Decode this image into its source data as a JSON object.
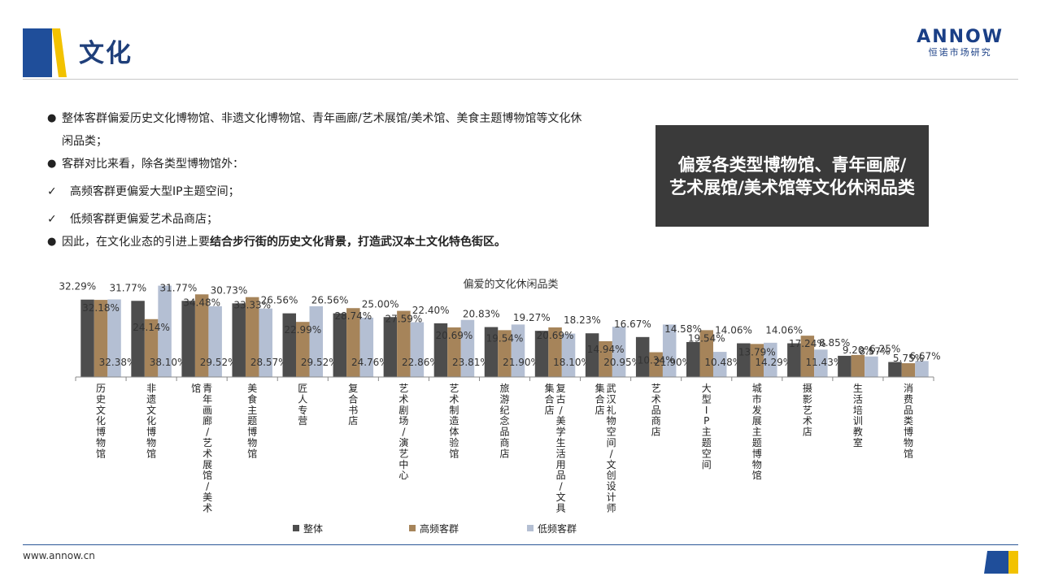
{
  "header": {
    "title": "文化",
    "brand_name": "ANNOW",
    "brand_sub": "恒诺市场研究"
  },
  "bullets": [
    {
      "type": "dot",
      "text": "整体客群偏爱历史文化博物馆、非遗文化博物馆、青年画廊/艺术展馆/美术馆、美食主题博物馆等文化休闲品类；"
    },
    {
      "type": "dot",
      "text": "客群对比来看，除各类型博物馆外："
    },
    {
      "type": "check",
      "text": "高频客群更偏爱大型IP主题空间；"
    },
    {
      "type": "check",
      "text": "低频客群更偏爱艺术品商店；"
    },
    {
      "type": "dot",
      "text_plain": "因此，在文化业态的引进上要",
      "text_bold": "结合步行街的历史文化背景，打造武汉本土文化特色街区。"
    }
  ],
  "callout": {
    "line1": "偏爱各类型博物馆、青年画廊/",
    "line2": "艺术展馆/美术馆等文化休闲品类"
  },
  "chart_data": {
    "type": "bar",
    "title": "偏爱的文化休闲品类",
    "categories": [
      "历史文化博物馆",
      "非遗文化博物馆",
      "青年画廊/艺术展馆/美术馆",
      "美食主题博物馆",
      "匠人专营",
      "复合书店",
      "艺术剧场/演艺中心",
      "艺术制造体验馆",
      "旅游纪念品商店",
      "复古/美学生活用品/文具集合店",
      "武汉礼物空间/文创设计师集合店",
      "艺术品商店",
      "大型IP主题空间",
      "城市发展主题博物馆",
      "摄影艺术店",
      "生活培训教室",
      "消费品类博物馆"
    ],
    "series": [
      {
        "name": "整体",
        "color": "#4d4d4d",
        "values": [
          32.29,
          31.77,
          31.77,
          30.73,
          26.56,
          26.56,
          25.0,
          22.4,
          20.83,
          19.27,
          18.23,
          16.67,
          14.58,
          14.06,
          14.06,
          8.85,
          6.25
        ]
      },
      {
        "name": "高频客群",
        "color": "#a6845a",
        "values": [
          32.18,
          24.14,
          34.48,
          33.33,
          22.99,
          28.74,
          27.59,
          20.69,
          19.54,
          20.69,
          14.94,
          10.34,
          19.54,
          13.79,
          17.24,
          9.2,
          5.75
        ]
      },
      {
        "name": "低频客群",
        "color": "#b4bfd3",
        "values": [
          32.38,
          38.1,
          29.52,
          28.57,
          29.52,
          24.76,
          22.86,
          23.81,
          21.9,
          18.1,
          20.95,
          21.9,
          10.48,
          14.29,
          11.43,
          8.57,
          6.67
        ]
      }
    ],
    "ylim": [
      0,
      40
    ],
    "legend": "bottom",
    "grid": false
  },
  "footer": {
    "url": "www.annow.cn"
  }
}
